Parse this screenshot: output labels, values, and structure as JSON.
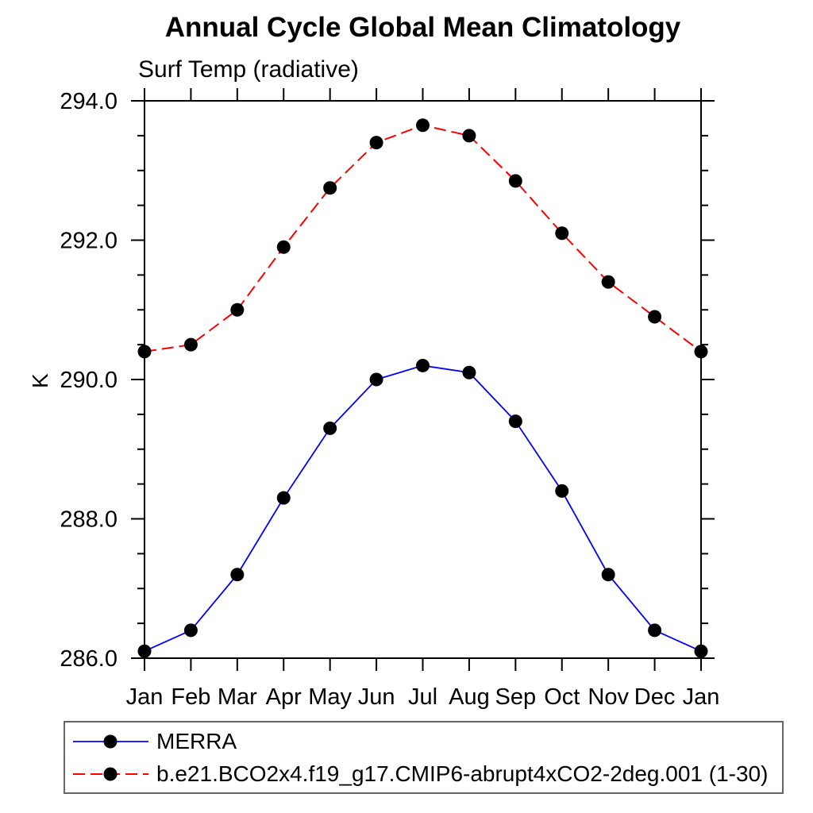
{
  "chart_data": {
    "type": "line",
    "title": "Annual Cycle Global Mean Climatology",
    "subtitle": "Surf Temp (radiative)",
    "ylabel": "K",
    "xlabel": "",
    "x_categories": [
      "Jan",
      "Feb",
      "Mar",
      "Apr",
      "May",
      "Jun",
      "Jul",
      "Aug",
      "Sep",
      "Oct",
      "Nov",
      "Dec",
      "Jan"
    ],
    "ylim": [
      286.0,
      294.0
    ],
    "y_major_ticks": [
      294.0,
      292.0,
      290.0,
      288.0,
      286.0
    ],
    "y_major_tick_labels": [
      "294.0",
      "292.0",
      "290.0",
      "288.0",
      "286.0"
    ],
    "y_minor_step": 0.5,
    "grid": false,
    "legend_position": "below-bottom-left",
    "axis_color": "#000000",
    "marker_shape": "filled-circle",
    "series": [
      {
        "name": "MERRA",
        "color": "#0000ff",
        "line_style": "solid",
        "marker_color": "#000000",
        "values": [
          286.1,
          286.4,
          287.2,
          288.3,
          289.3,
          290.0,
          290.2,
          290.1,
          289.4,
          288.4,
          287.2,
          286.4,
          286.1
        ]
      },
      {
        "name": "b.e21.BCO2x4.f19_g17.CMIP6-abrupt4xCO2-2deg.001 (1-30)",
        "color": "#ff0000",
        "line_style": "dashed",
        "marker_color": "#000000",
        "values": [
          290.4,
          290.5,
          291.0,
          291.9,
          292.75,
          293.4,
          293.65,
          293.5,
          292.85,
          292.1,
          291.4,
          290.9,
          290.4
        ]
      }
    ]
  }
}
